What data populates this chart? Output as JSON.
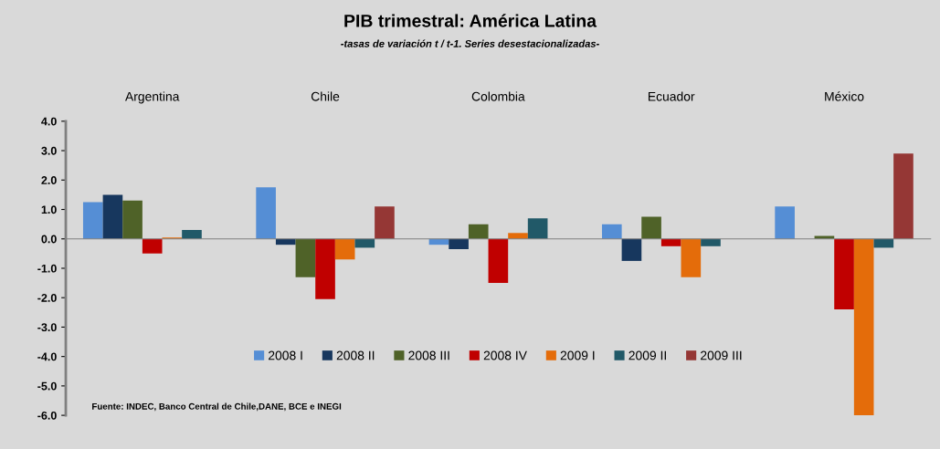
{
  "chart_data": {
    "type": "bar",
    "title": "PIB trimestral: América Latina",
    "subtitle": "-tasas de variación t / t-1. Series desestacionalizadas-",
    "categories": [
      "Argentina",
      "Chile",
      "Colombia",
      "Ecuador",
      "México"
    ],
    "series": [
      {
        "name": "2008 I",
        "color": "#558ed5",
        "values": [
          1.25,
          1.75,
          -0.2,
          0.5,
          1.1
        ]
      },
      {
        "name": "2008 II",
        "color": "#17375e",
        "values": [
          1.5,
          -0.2,
          -0.35,
          -0.75,
          null
        ]
      },
      {
        "name": "2008 III",
        "color": "#4f6228",
        "values": [
          1.3,
          -1.3,
          0.5,
          0.75,
          0.1
        ]
      },
      {
        "name": "2008 IV",
        "color": "#c00000",
        "values": [
          -0.5,
          -2.05,
          -1.5,
          -0.25,
          -2.4
        ]
      },
      {
        "name": "2009 I",
        "color": "#e46c0a",
        "values": [
          0.05,
          -0.7,
          0.2,
          -1.3,
          -6.0
        ]
      },
      {
        "name": "2009 II",
        "color": "#215968",
        "values": [
          0.3,
          -0.3,
          0.7,
          -0.25,
          -0.3
        ]
      },
      {
        "name": "2009 III",
        "color": "#953735",
        "values": [
          null,
          1.1,
          null,
          null,
          2.9
        ]
      }
    ],
    "ylim": [
      -6.0,
      4.0
    ],
    "yticks": [
      {
        "value": -6,
        "label": "-6.0"
      },
      {
        "value": -5,
        "label": "-5.0"
      },
      {
        "value": -4,
        "label": "-4.0"
      },
      {
        "value": -3,
        "label": "-3.0"
      },
      {
        "value": -2,
        "label": "-2.0"
      },
      {
        "value": -1,
        "label": "-1.0"
      },
      {
        "value": 0,
        "label": "0.0"
      },
      {
        "value": 1,
        "label": "1.0"
      },
      {
        "value": 2,
        "label": "2.0"
      },
      {
        "value": 3,
        "label": "3.0"
      },
      {
        "value": 4,
        "label": "4.0"
      }
    ],
    "legend": "bottom",
    "annotations": [
      "Fuente: INDEC, Banco Central de Chile,DANE, BCE e INEGI"
    ]
  }
}
